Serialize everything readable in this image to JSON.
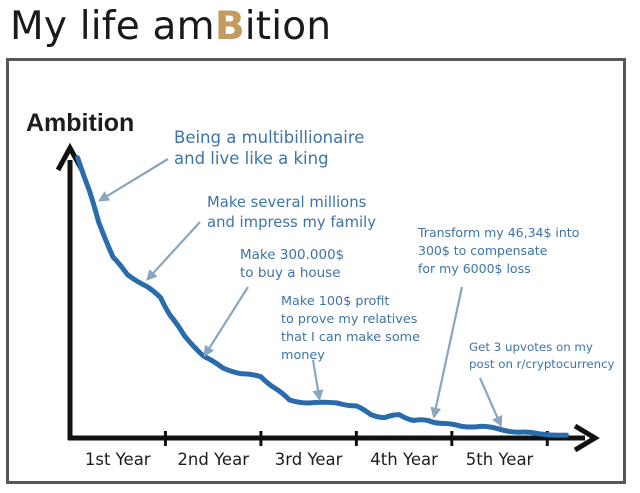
{
  "title": {
    "before": "My life am",
    "bitcoin_letter": "B",
    "after": "ition"
  },
  "colors": {
    "curve": "#2a6bab",
    "annotation_text": "#3d74a8",
    "arrow": "#8aa6bf",
    "bitcoin_b": "#c59a5f",
    "frame": "#575757",
    "axis": "#111111"
  },
  "chart_data": {
    "type": "line",
    "title": "",
    "ylabel": "Ambition",
    "xlabel": "",
    "categories": [
      "1st Year",
      "2nd Year",
      "3rd Year",
      "4th Year",
      "5th Year"
    ],
    "xlim": [
      0,
      5.5
    ],
    "ylim": [
      0,
      100
    ],
    "grid": false,
    "legend": "none",
    "series": [
      {
        "values": [
          [
            0.08,
            96
          ],
          [
            0.2,
            85
          ],
          [
            0.3,
            74
          ],
          [
            0.45,
            62
          ],
          [
            0.6,
            56
          ],
          [
            0.8,
            52
          ],
          [
            0.95,
            48
          ],
          [
            1.05,
            42
          ],
          [
            1.2,
            35
          ],
          [
            1.4,
            28
          ],
          [
            1.6,
            24
          ],
          [
            1.8,
            22
          ],
          [
            2.0,
            21
          ],
          [
            2.15,
            17
          ],
          [
            2.3,
            13
          ],
          [
            2.5,
            12
          ],
          [
            2.8,
            12
          ],
          [
            3.0,
            11
          ],
          [
            3.15,
            8
          ],
          [
            3.3,
            7
          ],
          [
            3.45,
            8
          ],
          [
            3.6,
            6
          ],
          [
            3.75,
            6
          ],
          [
            3.9,
            5
          ],
          [
            4.1,
            4
          ],
          [
            4.3,
            4
          ],
          [
            4.5,
            3
          ],
          [
            4.7,
            2
          ],
          [
            4.9,
            1.5
          ],
          [
            5.2,
            1
          ]
        ]
      }
    ],
    "annotations": [
      {
        "lines": [
          "Being a multibillionaire",
          "and live like a king"
        ],
        "x": 0.25,
        "y": 80
      },
      {
        "lines": [
          "Make several millions",
          "and impress my family"
        ],
        "x": 0.75,
        "y": 53
      },
      {
        "lines": [
          "Make 300.000$",
          "to buy a house"
        ],
        "x": 1.35,
        "y": 27
      },
      {
        "lines": [
          "Make 100$ profit",
          "to prove my relatives",
          "that I can make some",
          "money"
        ],
        "x": 2.55,
        "y": 12
      },
      {
        "lines": [
          "Transform my 46,34$ into",
          "300$ to compensate",
          "for my 6000$ loss"
        ],
        "x": 3.75,
        "y": 6
      },
      {
        "lines": [
          "Get 3 upvotes on my",
          "post on r/cryptocurrency"
        ],
        "x": 4.45,
        "y": 3
      }
    ]
  }
}
